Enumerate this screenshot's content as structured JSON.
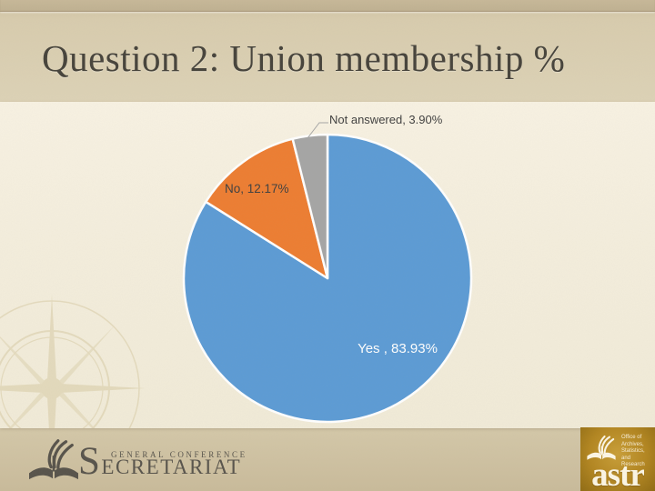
{
  "slide": {
    "title": "Question 2: Union membership %"
  },
  "chart_data": {
    "type": "pie",
    "title": "Question 2: Union membership %",
    "labels": [
      "Yes",
      "No",
      "Not answered"
    ],
    "values": [
      83.93,
      12.17,
      3.9
    ],
    "unit": "%",
    "colors": [
      "#5B9BD5",
      "#ED7D31",
      "#A5A5A5"
    ],
    "data_labels": [
      "Yes , 83.93%",
      "No, 12.17%",
      "Not answered, 3.90%"
    ],
    "start_angle_deg": 0,
    "direction": "clockwise",
    "legend": "none",
    "slice_border_color": "#FFFFFF"
  },
  "footer": {
    "secretariat_logo": {
      "top_line": "GENERAL CONFERENCE",
      "name": "SECRETARIAT"
    },
    "astr_logo": {
      "office_lines": [
        "Office of",
        "Archives,",
        "Statistics,",
        "and Research"
      ],
      "acronym": "astr",
      "gold_color": "#B2851F"
    }
  }
}
